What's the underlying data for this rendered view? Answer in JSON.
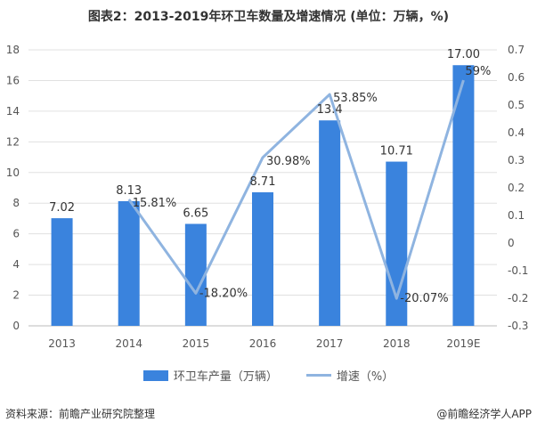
{
  "title": "图表2：2013-2019年环卫车数量及增速情况 (单位：万辆，%)",
  "source": "资料来源：前瞻产业研究院整理",
  "credit": "@前瞻经济学人APP",
  "colors": {
    "bar": "#3a83dd",
    "line": "#8fb4e0",
    "grid": "#e0e0e0",
    "axis": "#555555"
  },
  "chart_data": {
    "type": "bar",
    "categories": [
      "2013",
      "2014",
      "2015",
      "2016",
      "2017",
      "2018",
      "2019E"
    ],
    "series": [
      {
        "name": "环卫车产量（万辆）",
        "type": "bar",
        "axis": "left",
        "values": [
          7.02,
          8.13,
          6.65,
          8.71,
          13.4,
          10.71,
          17.0
        ],
        "labels": [
          "7.02",
          "8.13",
          "6.65",
          "8.71",
          "13.4",
          "10.71",
          "17.00"
        ]
      },
      {
        "name": "增速（%）",
        "type": "line",
        "axis": "right",
        "values": [
          null,
          0.1581,
          -0.182,
          0.3098,
          0.5385,
          -0.2007,
          0.59
        ],
        "labels": [
          "",
          "15.81%",
          "-18.20%",
          "30.98%",
          "53.85%",
          "-20.07%",
          "59%"
        ]
      }
    ],
    "y_left": {
      "min": 0,
      "max": 18,
      "ticks": [
        "0",
        "2",
        "4",
        "6",
        "8",
        "10",
        "12",
        "14",
        "16",
        "18"
      ]
    },
    "y_right": {
      "min": -0.3,
      "max": 0.7,
      "ticks": [
        "-0.3",
        "-0.2",
        "-0.1",
        "0",
        "0.1",
        "0.2",
        "0.3",
        "0.4",
        "0.5",
        "0.6",
        "0.7"
      ]
    },
    "legend_position": "bottom"
  }
}
